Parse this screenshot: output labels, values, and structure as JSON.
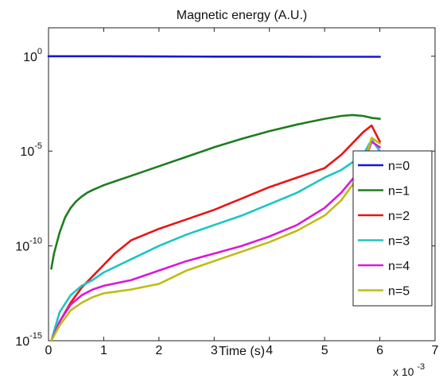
{
  "chart_data": {
    "type": "line",
    "title": "Magnetic energy (A.U.)",
    "xlabel": "Time (s)",
    "x_multiplier": "x 10",
    "x_multiplier_exponent": "-3",
    "ylabel": "",
    "xlim": [
      0,
      7
    ],
    "ylim_log10": [
      -15,
      1.5
    ],
    "yscale": "log",
    "x_ticks": [
      0,
      1,
      2,
      3,
      4,
      5,
      6,
      7
    ],
    "x_tick_labels": [
      "0",
      "1",
      "2",
      "3",
      "4",
      "5",
      "6",
      "7"
    ],
    "y_ticks_log10": [
      0,
      -5,
      -10,
      -15
    ],
    "y_tick_labels": [
      {
        "base": "10",
        "exp": "0"
      },
      {
        "base": "10",
        "exp": "-5"
      },
      {
        "base": "10",
        "exp": "-10"
      },
      {
        "base": "10",
        "exp": "-15"
      }
    ],
    "grid": false,
    "legend_position": "right",
    "series": [
      {
        "name": "n=0",
        "color": "#1515e0",
        "x": [
          0.0,
          0.5,
          1,
          2,
          3,
          4,
          5,
          6.0
        ],
        "log10_y": [
          0.0,
          0.0,
          0.0,
          -0.01,
          -0.02,
          -0.02,
          -0.03,
          -0.03
        ]
      },
      {
        "name": "n=1",
        "color": "#1e7d1e",
        "x": [
          0.05,
          0.1,
          0.2,
          0.3,
          0.4,
          0.5,
          0.6,
          0.7,
          0.8,
          1.0,
          1.2,
          1.5,
          2.0,
          2.5,
          3.0,
          3.5,
          4.0,
          4.5,
          5.0,
          5.3,
          5.5,
          5.7,
          5.85,
          6.0
        ],
        "log10_y": [
          -11.2,
          -10.4,
          -9.3,
          -8.5,
          -8.0,
          -7.65,
          -7.4,
          -7.2,
          -7.05,
          -6.8,
          -6.6,
          -6.3,
          -5.8,
          -5.3,
          -4.8,
          -4.35,
          -3.95,
          -3.6,
          -3.3,
          -3.15,
          -3.1,
          -3.15,
          -3.25,
          -3.3
        ]
      },
      {
        "name": "n=2",
        "color": "#e81515",
        "x": [
          0.05,
          0.2,
          0.4,
          0.6,
          0.8,
          1.0,
          1.2,
          1.5,
          2.0,
          2.5,
          3.0,
          3.5,
          4.0,
          4.5,
          5.0,
          5.3,
          5.5,
          5.7,
          5.85,
          6.0
        ],
        "log10_y": [
          -15.0,
          -14.0,
          -13.0,
          -12.2,
          -11.6,
          -11.0,
          -10.4,
          -9.7,
          -9.1,
          -8.6,
          -8.1,
          -7.5,
          -6.9,
          -6.4,
          -5.9,
          -5.2,
          -4.6,
          -4.0,
          -3.65,
          -4.5
        ]
      },
      {
        "name": "n=3",
        "color": "#1ec4c4",
        "x": [
          0.05,
          0.2,
          0.4,
          0.6,
          0.8,
          1.0,
          1.5,
          2.0,
          2.5,
          3.0,
          3.5,
          4.0,
          4.5,
          5.0,
          5.3,
          5.5,
          5.7,
          5.85,
          6.0
        ],
        "log10_y": [
          -15.0,
          -13.5,
          -12.6,
          -12.1,
          -11.8,
          -11.4,
          -10.7,
          -10.0,
          -9.4,
          -8.9,
          -8.4,
          -7.8,
          -7.2,
          -6.4,
          -6.0,
          -5.6,
          -5.2,
          -4.4,
          -5.0
        ]
      },
      {
        "name": "n=4",
        "color": "#d81ad8",
        "x": [
          0.05,
          0.2,
          0.4,
          0.6,
          0.8,
          1.0,
          1.5,
          2.0,
          2.5,
          3.0,
          3.5,
          4.0,
          4.5,
          5.0,
          5.3,
          5.5,
          5.7,
          5.85,
          6.0
        ],
        "log10_y": [
          -15.0,
          -14.0,
          -13.1,
          -12.6,
          -12.3,
          -12.1,
          -11.8,
          -11.3,
          -10.8,
          -10.4,
          -10.0,
          -9.5,
          -8.9,
          -8.0,
          -7.2,
          -6.5,
          -5.8,
          -4.5,
          -4.8
        ]
      },
      {
        "name": "n=5",
        "color": "#bdbd14",
        "x": [
          0.05,
          0.2,
          0.4,
          0.6,
          0.8,
          1.0,
          1.5,
          2.0,
          2.5,
          3.0,
          3.5,
          4.0,
          4.5,
          5.0,
          5.3,
          5.5,
          5.7,
          5.85,
          6.0
        ],
        "log10_y": [
          -15.0,
          -14.2,
          -13.4,
          -13.0,
          -12.7,
          -12.5,
          -12.3,
          -12.0,
          -11.3,
          -10.8,
          -10.3,
          -9.8,
          -9.2,
          -8.4,
          -7.6,
          -6.8,
          -5.9,
          -4.3,
          -4.6
        ]
      }
    ]
  }
}
